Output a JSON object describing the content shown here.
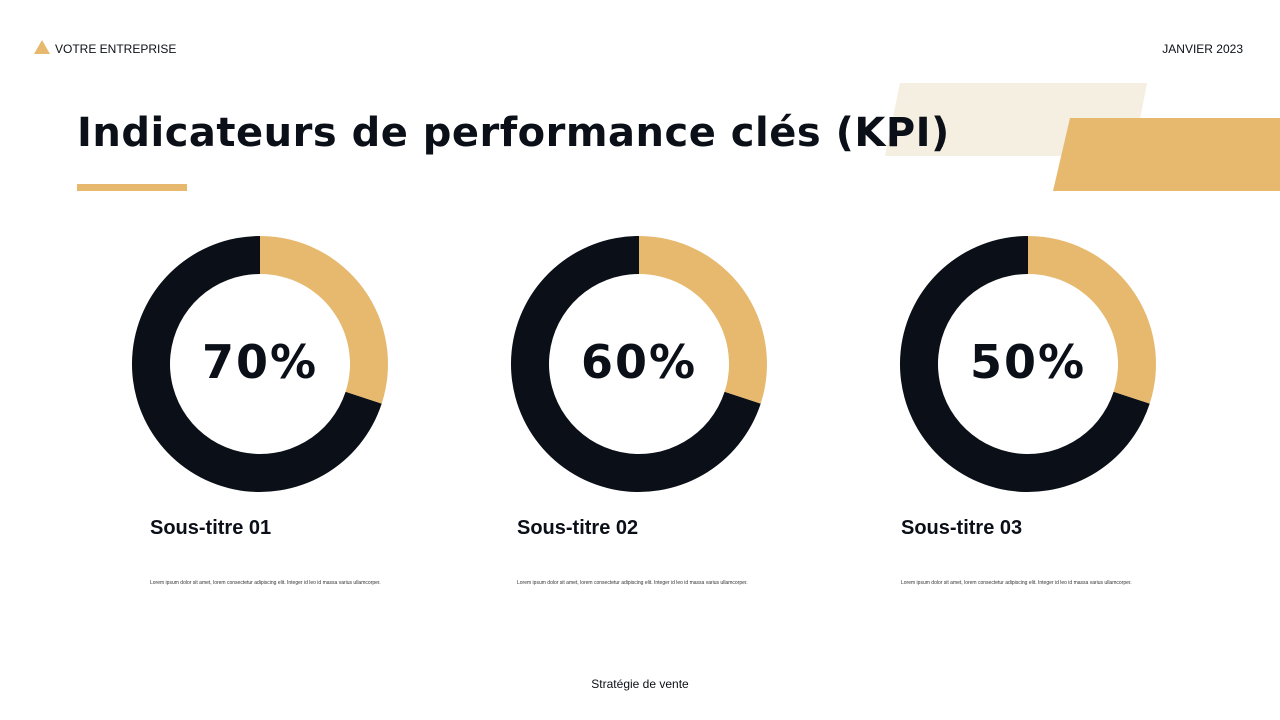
{
  "header": {
    "company": "VOTRE ENTREPRISE",
    "date": "JANVIER 2023"
  },
  "title": "Indicateurs de performance clés (KPI)",
  "kpis": [
    {
      "value": "70%",
      "subtitle": "Sous-titre 01",
      "text": "Lorem ipsum dolor sit amet, lorem consectetur adipiscing elit. Integer id leo id massa varius ullamcorper."
    },
    {
      "value": "60%",
      "subtitle": "Sous-titre 02",
      "text": "Lorem ipsum dolor sit amet, lorem consectetur adipiscing elit. Integer id leo id massa varius ullamcorper."
    },
    {
      "value": "50%",
      "subtitle": "Sous-titre 03",
      "text": "Lorem ipsum dolor sit amet, lorem consectetur adipiscing elit. Integer id leo id massa varius ullamcorper."
    }
  ],
  "footer": "Stratégie de vente"
}
